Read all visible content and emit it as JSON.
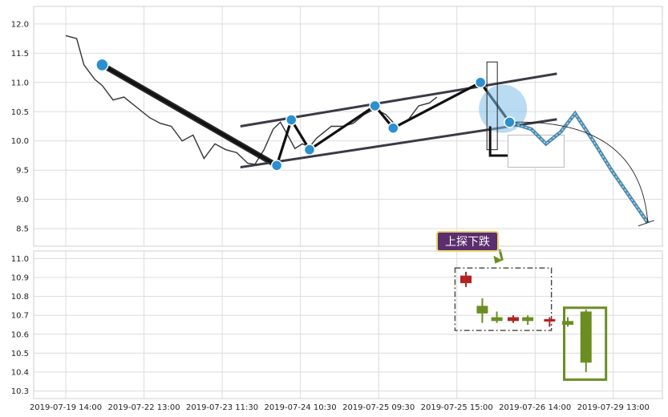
{
  "chart_data": [
    {
      "type": "line",
      "panel": "top",
      "ylim": [
        8.2,
        12.3
      ],
      "yticks": [
        8.5,
        9.0,
        9.5,
        10.0,
        10.5,
        11.0,
        11.5,
        12.0
      ],
      "ytick_labels": [
        "8.5",
        "9.0",
        "9.5",
        "10.0",
        "10.5",
        "11.0",
        "11.5",
        "12.0"
      ],
      "grid": true,
      "price_series": {
        "x": [
          0,
          0.3,
          0.5,
          0.8,
          1.0,
          1.3,
          1.6,
          2.0,
          2.3,
          2.6,
          2.9,
          3.2,
          3.5,
          3.8,
          4.1,
          4.4,
          4.7,
          5.0,
          5.2,
          5.45,
          5.7,
          5.9,
          6.1,
          6.3,
          6.5,
          6.7,
          6.9,
          7.1,
          7.3,
          7.6,
          7.9,
          8.2,
          8.5,
          8.8,
          9.1,
          9.4,
          9.7,
          10.0,
          10.2
        ],
        "y": [
          11.8,
          11.75,
          11.3,
          11.05,
          10.95,
          10.7,
          10.75,
          10.55,
          10.4,
          10.3,
          10.25,
          10.0,
          10.1,
          9.7,
          9.95,
          9.85,
          9.8,
          9.62,
          9.6,
          9.85,
          10.2,
          10.32,
          10.1,
          9.87,
          9.95,
          9.9,
          10.05,
          10.15,
          10.25,
          10.25,
          10.3,
          10.45,
          10.55,
          10.45,
          10.25,
          10.35,
          10.6,
          10.65,
          10.75
        ]
      },
      "zigzag": {
        "x": [
          1.0,
          5.8,
          6.2,
          6.7,
          8.5,
          9.0,
          11.4,
          12.2
        ],
        "y": [
          11.3,
          9.58,
          10.36,
          9.85,
          10.6,
          10.22,
          11.0,
          10.32
        ]
      },
      "channel_upper": {
        "x": [
          4.8,
          13.5
        ],
        "y": [
          10.25,
          11.15
        ]
      },
      "channel_lower": {
        "x": [
          4.8,
          13.5
        ],
        "y": [
          9.55,
          10.37
        ]
      },
      "projection": {
        "x": [
          12.2,
          12.8,
          13.2,
          13.6,
          14.0,
          14.5,
          15.0,
          15.5,
          16.0
        ],
        "y": [
          10.32,
          10.2,
          9.95,
          10.15,
          10.47,
          10.0,
          9.5,
          9.05,
          8.6
        ]
      },
      "forecast_arc_end": {
        "x": 16.0,
        "y": 8.6
      }
    },
    {
      "type": "candlestick",
      "panel": "bottom",
      "ylim": [
        10.26,
        11.04
      ],
      "yticks": [
        10.3,
        10.4,
        10.5,
        10.6,
        10.7,
        10.8,
        10.9,
        11.0
      ],
      "ytick_labels": [
        "10.3",
        "10.4",
        "10.5",
        "10.6",
        "10.7",
        "10.8",
        "10.9",
        "11.0"
      ],
      "grid": true,
      "xlim": [
        0,
        16.4
      ],
      "x_tick_positions": [
        0,
        2.15,
        4.3,
        6.45,
        8.6,
        10.75,
        12.9,
        15.05
      ],
      "x_tick_labels": [
        "2019-07-19 14:00",
        "2019-07-22 13:00",
        "2019-07-23 11:30",
        "2019-07-24 10:30",
        "2019-07-25 09:30",
        "2019-07-25 15:00",
        "2019-07-26 14:00",
        "2019-07-29 13:00"
      ],
      "candles": [
        {
          "x": 11.0,
          "open": 10.91,
          "close": 10.87,
          "high": 10.93,
          "low": 10.85,
          "color": "#b22222"
        },
        {
          "x": 11.45,
          "open": 10.71,
          "close": 10.75,
          "high": 10.79,
          "low": 10.66,
          "color": "#6b8e23"
        },
        {
          "x": 11.85,
          "open": 10.67,
          "close": 10.69,
          "high": 10.72,
          "low": 10.66,
          "color": "#6b8e23"
        },
        {
          "x": 12.3,
          "open": 10.69,
          "close": 10.67,
          "high": 10.7,
          "low": 10.66,
          "color": "#b22222"
        },
        {
          "x": 12.7,
          "open": 10.67,
          "close": 10.69,
          "high": 10.7,
          "low": 10.65,
          "color": "#6b8e23"
        },
        {
          "x": 13.3,
          "open": 10.68,
          "close": 10.68,
          "high": 10.69,
          "low": 10.64,
          "color": "#b22222"
        },
        {
          "x": 13.8,
          "open": 10.65,
          "close": 10.67,
          "high": 10.69,
          "low": 10.64,
          "color": "#6b8e23"
        },
        {
          "x": 14.3,
          "open": 10.45,
          "close": 10.72,
          "high": 10.73,
          "low": 10.4,
          "color": "#6b8e23"
        }
      ],
      "annotation": {
        "text": "上探下跌",
        "highlight_x": [
          13.7,
          14.85
        ],
        "highlight_y": [
          10.36,
          10.74
        ],
        "pattern_x": [
          10.7,
          13.35
        ],
        "pattern_y": [
          10.62,
          10.95
        ]
      }
    }
  ]
}
